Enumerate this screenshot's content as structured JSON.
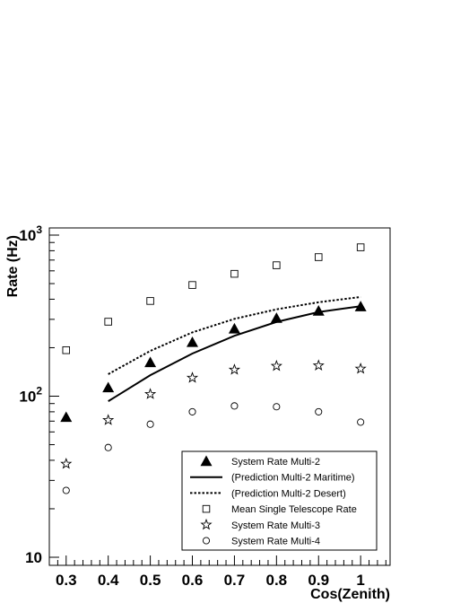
{
  "chart_data": {
    "type": "scatter",
    "xlabel": "Cos(Zenith)",
    "ylabel": "Rate (Hz)",
    "xlim": [
      0.26,
      1.07
    ],
    "ylim": [
      10,
      1000
    ],
    "y_scale": "log",
    "x_ticks": [
      0.3,
      0.4,
      0.5,
      0.6,
      0.7,
      0.8,
      0.9,
      1.0
    ],
    "x_tick_labels": [
      "0.3",
      "0.4",
      "0.5",
      "0.6",
      "0.7",
      "0.8",
      "0.9",
      "1"
    ],
    "y_tick_labels": [
      {
        "value": 10,
        "base": "10",
        "exp": ""
      },
      {
        "value": 100,
        "base": "10",
        "exp": "2"
      },
      {
        "value": 1000,
        "base": "10",
        "exp": "3"
      }
    ],
    "legend_position": "bottom-right",
    "series": [
      {
        "name": "System Rate Multi-2",
        "kind": "points",
        "marker": "filled-triangle",
        "x": [
          0.3,
          0.4,
          0.5,
          0.6,
          0.7,
          0.8,
          0.9,
          1.0
        ],
        "y": [
          74,
          113,
          162,
          216,
          262,
          305,
          338,
          360
        ]
      },
      {
        "name": "(Prediction Multi-2 Maritime)",
        "kind": "line",
        "style": "solid",
        "x": [
          0.4,
          0.5,
          0.6,
          0.7,
          0.8,
          0.9,
          1.0
        ],
        "y": [
          93,
          135,
          184,
          237,
          289,
          333,
          362
        ]
      },
      {
        "name": "(Prediction Multi-2 Desert)",
        "kind": "line",
        "style": "dotted",
        "x": [
          0.4,
          0.5,
          0.6,
          0.7,
          0.8,
          0.9,
          1.0
        ],
        "y": [
          137,
          191,
          249,
          302,
          346,
          383,
          413
        ]
      },
      {
        "name": "Mean Single Telescope Rate",
        "kind": "points",
        "marker": "open-square",
        "x": [
          0.3,
          0.4,
          0.5,
          0.6,
          0.7,
          0.8,
          0.9,
          1.0
        ],
        "y": [
          193,
          290,
          390,
          490,
          575,
          650,
          730,
          840
        ]
      },
      {
        "name": "System Rate Multi-3",
        "kind": "points",
        "marker": "open-star",
        "x": [
          0.3,
          0.4,
          0.5,
          0.6,
          0.7,
          0.8,
          0.9,
          1.0
        ],
        "y": [
          38,
          71,
          103,
          130,
          146,
          154,
          155,
          148
        ]
      },
      {
        "name": "System Rate Multi-4",
        "kind": "points",
        "marker": "open-circle",
        "x": [
          0.3,
          0.4,
          0.5,
          0.6,
          0.7,
          0.8,
          0.9,
          1.0
        ],
        "y": [
          26,
          48,
          67,
          80,
          87,
          86,
          80,
          69
        ]
      }
    ]
  }
}
